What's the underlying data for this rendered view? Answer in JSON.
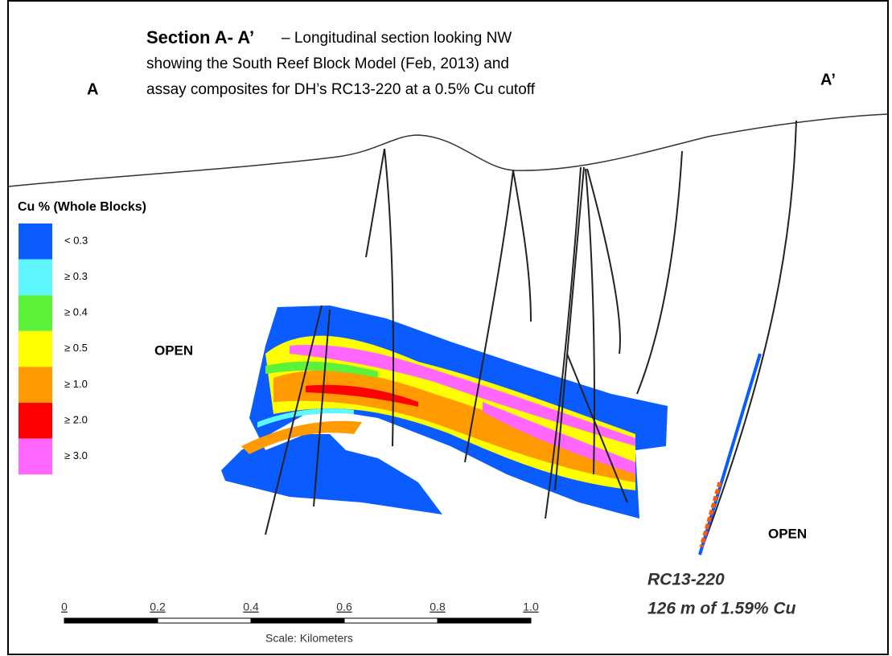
{
  "title": {
    "heading": "Section A- A’",
    "lines": [
      "– Longitudinal section looking NW",
      "showing the South Reef Block Model (Feb, 2013) and",
      "assay composites for DH’s RC13-220 at a 0.5% Cu cutoff"
    ]
  },
  "section_ends": {
    "left": "A",
    "right": "A’"
  },
  "legend": {
    "title": "Cu % (Whole Blocks)",
    "items": [
      {
        "label": "< 0.3",
        "color": "#0a5cff"
      },
      {
        "label": "≥ 0.3",
        "color": "#5ff7ff"
      },
      {
        "label": "≥ 0.4",
        "color": "#5cf23a"
      },
      {
        "label": "≥ 0.5",
        "color": "#ffff00"
      },
      {
        "label": "≥ 1.0",
        "color": "#ff9a00"
      },
      {
        "label": "≥ 2.0",
        "color": "#ff0000"
      },
      {
        "label": "≥ 3.0",
        "color": "#ff66ff"
      }
    ]
  },
  "annotations": {
    "open_left": "OPEN",
    "open_right": "OPEN",
    "hole_name": "RC13-220",
    "hole_result": "126 m of 1.59% Cu"
  },
  "scale": {
    "ticks": [
      "0",
      "0.2",
      "0.4",
      "0.6",
      "0.8",
      "1.0"
    ],
    "caption": "Scale: Kilometers"
  }
}
